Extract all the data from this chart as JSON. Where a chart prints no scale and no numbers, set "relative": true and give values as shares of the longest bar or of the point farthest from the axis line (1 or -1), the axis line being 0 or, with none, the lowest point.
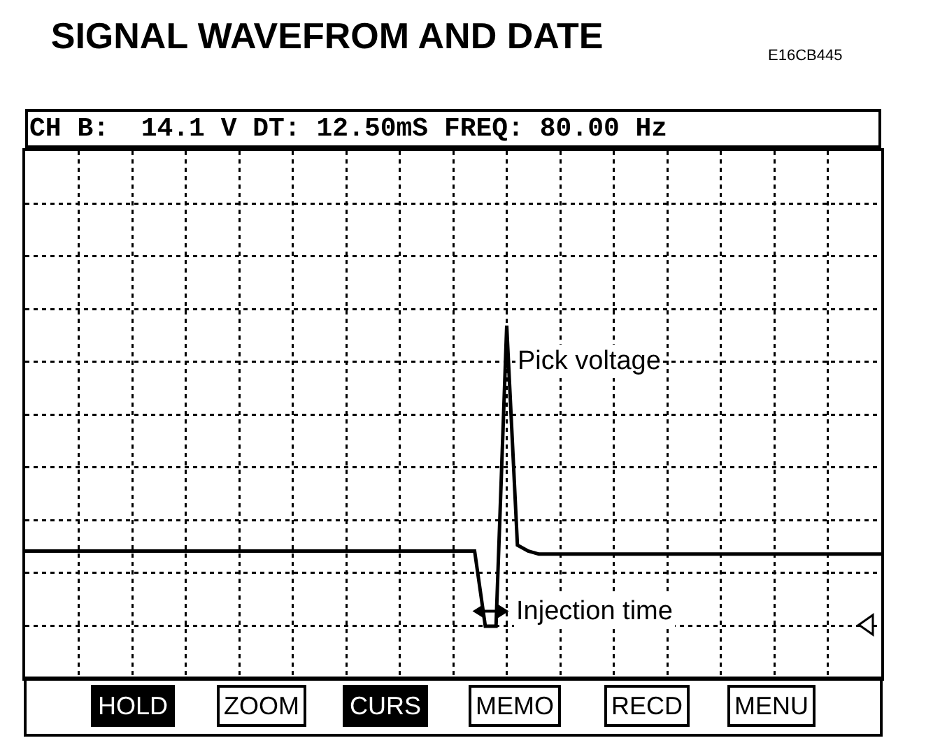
{
  "chart_data": {
    "type": "line",
    "title": "SIGNAL WAVEFROM AND DATE",
    "relative": true,
    "categories": [
      null,
      null,
      null,
      null,
      null,
      null,
      null,
      null,
      null,
      null,
      null,
      null,
      null,
      null,
      null,
      null,
      null,
      null,
      null,
      null,
      null,
      null,
      null,
      null,
      null,
      null,
      null,
      null,
      null,
      null,
      null,
      null,
      null,
      null,
      null,
      null,
      null,
      null,
      null,
      null,
      null,
      null,
      null,
      null,
      null,
      null,
      null,
      null,
      null,
      null,
      null,
      null,
      null,
      null,
      null,
      null,
      null,
      null,
      null,
      null,
      null,
      null,
      null,
      null,
      null,
      null,
      null,
      null,
      null,
      null,
      null,
      null,
      null,
      null,
      null,
      null,
      null,
      null,
      null,
      null,
      null
    ],
    "series": [
      {
        "color": "#000000",
        "values": [
          0.25,
          0.25,
          0.25,
          0.25,
          0.25,
          0.25,
          0.25,
          0.25,
          0.25,
          0.25,
          0.25,
          0.25,
          0.25,
          0.25,
          0.25,
          0.25,
          0.25,
          0.25,
          0.25,
          0.25,
          0.25,
          0.25,
          0.25,
          0.25,
          0.25,
          0.25,
          0.25,
          0.25,
          0.25,
          0.25,
          0.25,
          0.25,
          0.25,
          0.25,
          0.25,
          0.25,
          0.25,
          0.25,
          0.25,
          0.25,
          0.25,
          0.25,
          0.25,
          0,
          0,
          1,
          0.27,
          0.25,
          0.24,
          0.24,
          0.24,
          0.24,
          0.24,
          0.24,
          0.24,
          0.24,
          0.24,
          0.24,
          0.24,
          0.24,
          0.24,
          0.24,
          0.24,
          0.24,
          0.24,
          0.24,
          0.24,
          0.24,
          0.24,
          0.24,
          0.24,
          0.24,
          0.24,
          0.24,
          0.24,
          0.24,
          0.24,
          0.24,
          0.24,
          0.24,
          0.24
        ]
      }
    ],
    "annotations": [
      "CH B:  14.1 V DT: 12.50mS FREQ: 80.00 Hz",
      "E16CB445",
      "Pick voltage",
      "Injection time",
      "HOLD",
      "ZOOM",
      "CURS",
      "MEMO",
      "RECD",
      "MENU"
    ],
    "grid": true,
    "marker": "none",
    "line_style": "solid"
  }
}
